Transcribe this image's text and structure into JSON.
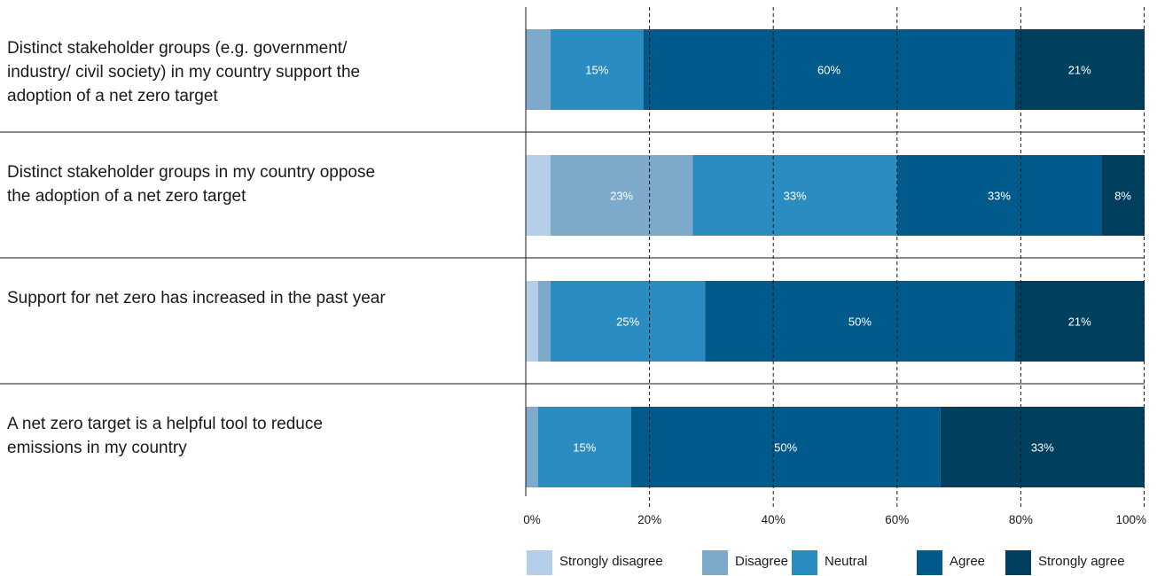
{
  "chart_data": {
    "type": "bar",
    "orientation": "horizontal",
    "stacked": true,
    "categories": [
      [
        "Distinct stakeholder groups (e.g. government/",
        "industry/ civil society) in my country support the",
        "adoption of a net zero target"
      ],
      [
        "Distinct stakeholder groups in my country oppose",
        "the adoption of a net zero target"
      ],
      [
        "Support for net zero has increased in the past year"
      ],
      [
        "A net zero target is a helpful tool to reduce",
        "emissions in my country"
      ]
    ],
    "series": [
      {
        "name": "Strongly disagree",
        "color": "#b6cfe9",
        "values": [
          0,
          4,
          2,
          0
        ],
        "labels": [
          "",
          "",
          "",
          ""
        ]
      },
      {
        "name": "Disagree",
        "color": "#7da9cb",
        "values": [
          4,
          23,
          2,
          2
        ],
        "labels": [
          "",
          "23%",
          "",
          ""
        ]
      },
      {
        "name": "Neutral",
        "color": "#2b8cc1",
        "values": [
          15,
          33,
          25,
          15
        ],
        "labels": [
          "15%",
          "33%",
          "25%",
          "15%"
        ]
      },
      {
        "name": "Agree",
        "color": "#005a8c",
        "values": [
          60,
          33,
          50,
          50
        ],
        "labels": [
          "60%",
          "33%",
          "50%",
          "50%"
        ]
      },
      {
        "name": "Strongly agree",
        "color": "#003f5e",
        "values": [
          21,
          8,
          21,
          33
        ],
        "labels": [
          "21%",
          "8%",
          "21%",
          "33%"
        ]
      }
    ],
    "x_ticks": [
      "0%",
      "20%",
      "40%",
      "60%",
      "80%",
      "100%"
    ],
    "xlim": [
      0,
      100
    ],
    "grid": "dashed vertical",
    "legend": "bottom-right"
  }
}
